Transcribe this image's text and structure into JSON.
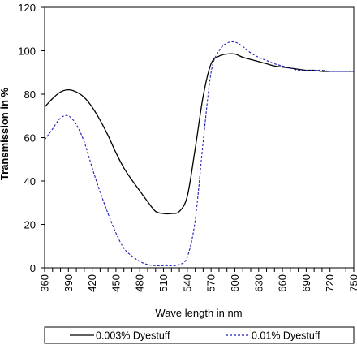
{
  "chart_data": {
    "type": "line",
    "xlabel": "Wave length in nm",
    "ylabel": "Transmission in %",
    "xlim": [
      360,
      750
    ],
    "ylim": [
      0,
      120
    ],
    "x_ticks": [
      "360",
      "390",
      "420",
      "450",
      "480",
      "510",
      "540",
      "570",
      "600",
      "630",
      "660",
      "690",
      "720",
      "750"
    ],
    "y_ticks": [
      "0",
      "20",
      "40",
      "60",
      "80",
      "100",
      "120"
    ],
    "grid": false,
    "legend_position": "bottom",
    "series": [
      {
        "name": "0.003% Dyestuff",
        "color": "#000000",
        "dash": "solid",
        "x": [
          360,
          370,
          380,
          390,
          400,
          410,
          420,
          430,
          440,
          450,
          460,
          470,
          480,
          490,
          500,
          510,
          520,
          530,
          540,
          550,
          560,
          570,
          580,
          590,
          600,
          610,
          620,
          630,
          640,
          650,
          660,
          670,
          680,
          690,
          700,
          710,
          720,
          730,
          740,
          750
        ],
        "values": [
          74,
          78,
          81,
          82,
          81,
          78.5,
          74,
          68,
          61,
          53,
          46,
          40.5,
          35.5,
          30.5,
          26,
          25,
          25,
          26,
          33,
          55,
          79,
          94,
          97.5,
          98.5,
          98.5,
          97,
          96,
          95,
          94,
          93,
          92.5,
          92,
          91.5,
          91,
          91,
          90.5,
          90.5,
          90.5,
          90.5,
          90.5
        ]
      },
      {
        "name": "0.01% Dyestuff",
        "color": "#1f1fb4",
        "dash": "dashed",
        "x": [
          360,
          370,
          380,
          390,
          400,
          410,
          420,
          430,
          440,
          450,
          460,
          470,
          480,
          490,
          500,
          510,
          520,
          530,
          540,
          550,
          560,
          570,
          580,
          590,
          600,
          610,
          620,
          630,
          640,
          650,
          660,
          670,
          680,
          690,
          700,
          710,
          720,
          730,
          740,
          750
        ],
        "values": [
          59,
          64,
          69,
          70,
          66,
          58,
          46,
          35,
          25,
          16,
          9,
          5.5,
          3,
          1.5,
          1,
          1,
          1,
          1.5,
          5,
          22,
          58,
          90,
          100,
          103.5,
          104,
          102,
          99,
          97,
          95.5,
          94,
          93,
          92,
          91,
          91,
          91,
          91,
          90.5,
          90.5,
          90.5,
          90.5
        ]
      }
    ]
  }
}
